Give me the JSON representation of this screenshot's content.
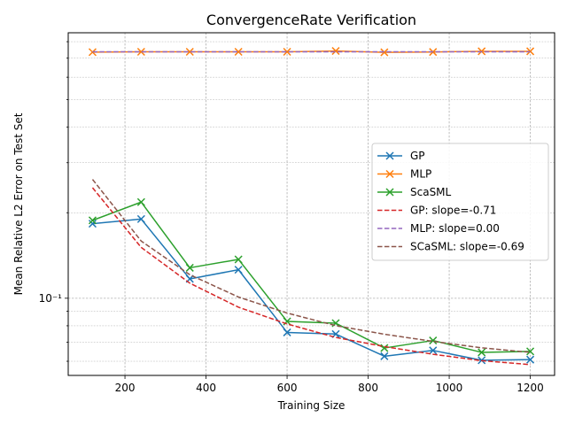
{
  "chart_data": {
    "type": "line",
    "title": "ConvergenceRate Verification",
    "xlabel": "Training Size",
    "ylabel": "Mean Relative L2 Error on Test Set",
    "x": [
      120,
      240,
      360,
      480,
      600,
      720,
      840,
      960,
      1080,
      1200
    ],
    "xlim": [
      60,
      1260
    ],
    "ylim": [
      0.0535,
      0.86
    ],
    "yscale": "log",
    "x_ticks": [
      200,
      400,
      600,
      800,
      1000,
      1200
    ],
    "y_ticks": [
      {
        "value": 0.1,
        "label": "10⁻¹"
      }
    ],
    "grid": true,
    "legend_position": "center-right",
    "series": [
      {
        "name": "GP",
        "style": "solid",
        "marker": "x",
        "color": "#1f77b4",
        "values": [
          0.183,
          0.19,
          0.117,
          0.126,
          0.0758,
          0.0748,
          0.0625,
          0.0655,
          0.0605,
          0.0608
        ]
      },
      {
        "name": "MLP",
        "style": "solid",
        "marker": "x",
        "color": "#ff7f0e",
        "values": [
          0.735,
          0.737,
          0.737,
          0.737,
          0.737,
          0.742,
          0.734,
          0.736,
          0.74,
          0.74
        ]
      },
      {
        "name": "ScaSML",
        "style": "solid",
        "marker": "x",
        "color": "#2ca02c",
        "values": [
          0.188,
          0.218,
          0.128,
          0.137,
          0.0829,
          0.0817,
          0.0668,
          0.071,
          0.0645,
          0.065
        ]
      },
      {
        "name": "GP: slope=-0.71",
        "style": "dashed",
        "color": "#d62728",
        "values": [
          0.245,
          0.151,
          0.113,
          0.093,
          0.0812,
          0.0728,
          0.0676,
          0.0635,
          0.0603,
          0.0584
        ]
      },
      {
        "name": "MLP: slope=0.00",
        "style": "dashed",
        "color": "#9467bd",
        "values": [
          0.737,
          0.737,
          0.737,
          0.737,
          0.737,
          0.737,
          0.737,
          0.737,
          0.737,
          0.737
        ]
      },
      {
        "name": "SCaSML: slope=-0.69",
        "style": "dashed",
        "color": "#8c564b",
        "values": [
          0.262,
          0.159,
          0.121,
          0.101,
          0.0887,
          0.0801,
          0.0747,
          0.0705,
          0.0669,
          0.0645
        ]
      }
    ]
  }
}
